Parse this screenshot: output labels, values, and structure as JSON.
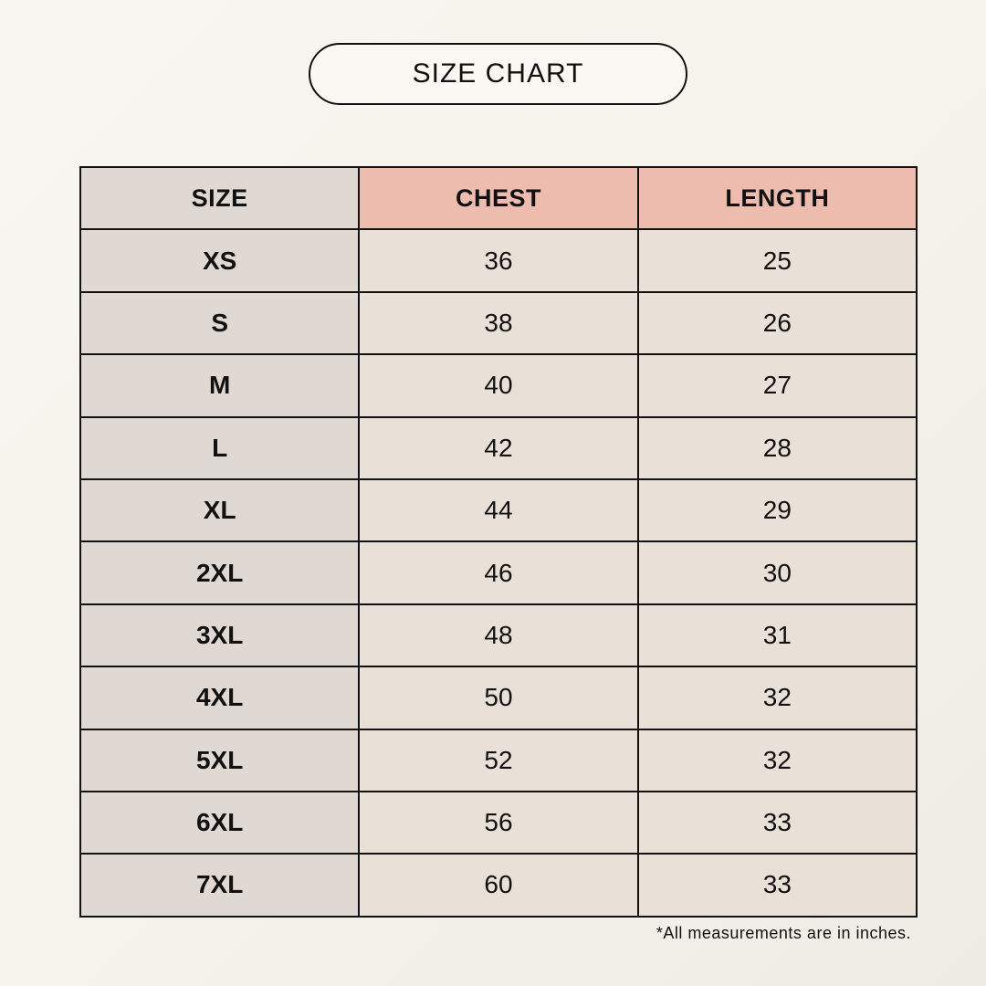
{
  "title": "SIZE CHART",
  "colors": {
    "size_column": "#e0d8d3",
    "header_highlight": "#edbcaf",
    "value_cell": "#e9e1d8"
  },
  "table": {
    "headers": [
      "SIZE",
      "CHEST",
      "LENGTH"
    ],
    "rows": [
      [
        "XS",
        "36",
        "25"
      ],
      [
        "S",
        "38",
        "26"
      ],
      [
        "M",
        "40",
        "27"
      ],
      [
        "L",
        "42",
        "28"
      ],
      [
        "XL",
        "44",
        "29"
      ],
      [
        "2XL",
        "46",
        "30"
      ],
      [
        "3XL",
        "48",
        "31"
      ],
      [
        "4XL",
        "50",
        "32"
      ],
      [
        "5XL",
        "52",
        "32"
      ],
      [
        "6XL",
        "56",
        "33"
      ],
      [
        "7XL",
        "60",
        "33"
      ]
    ]
  },
  "footnote": "*All measurements are in inches."
}
